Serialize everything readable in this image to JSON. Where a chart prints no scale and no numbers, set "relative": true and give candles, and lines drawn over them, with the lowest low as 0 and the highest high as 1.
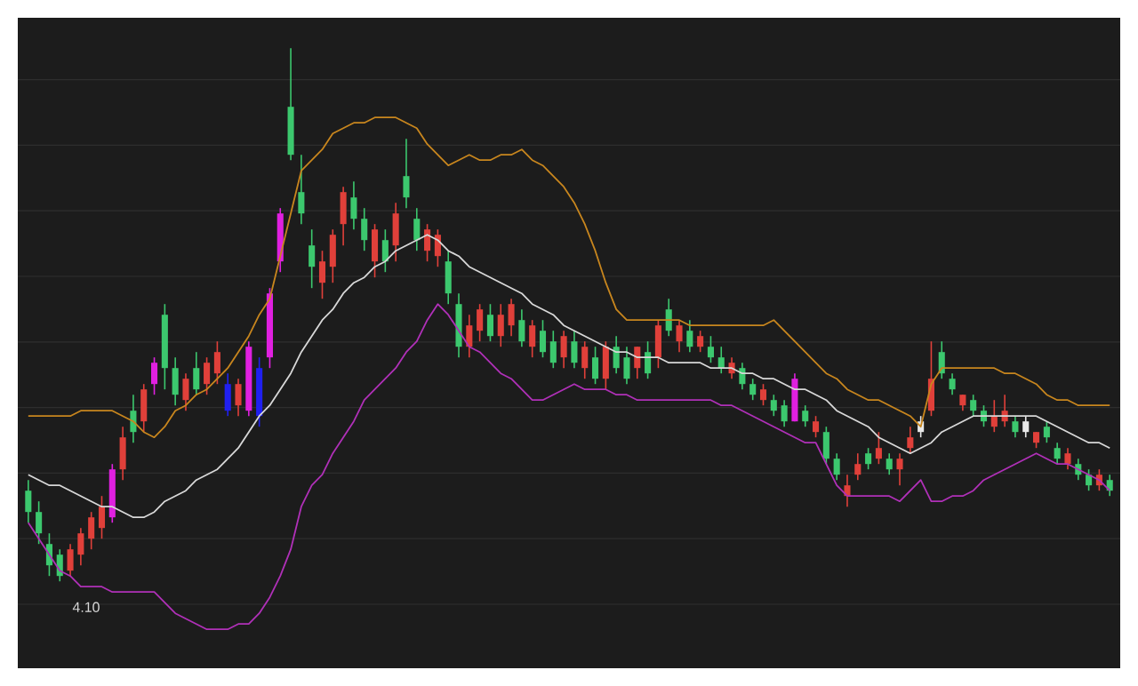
{
  "chart_data": {
    "type": "candlestick",
    "relative": true,
    "grid": "y",
    "tick_labels": false,
    "categories": [
      null,
      null,
      null,
      null,
      null,
      null,
      null,
      null,
      null,
      null,
      null,
      null,
      null,
      null,
      null,
      null,
      null,
      null,
      null,
      null,
      null,
      null,
      null,
      null,
      null,
      null,
      null,
      null,
      null,
      null,
      null,
      null,
      null,
      null,
      null,
      null,
      null,
      null,
      null,
      null,
      null,
      null,
      null,
      null,
      null,
      null,
      null,
      null,
      null,
      null,
      null,
      null,
      null,
      null,
      null,
      null,
      null,
      null,
      null,
      null,
      null,
      null,
      null,
      null,
      null,
      null,
      null,
      null,
      null,
      null,
      null,
      null,
      null,
      null,
      null,
      null,
      null,
      null,
      null,
      null,
      null,
      null,
      null,
      null,
      null,
      null,
      null,
      null,
      null,
      null,
      null,
      null,
      null,
      null,
      null,
      null,
      null,
      null,
      null,
      null,
      null,
      null,
      null,
      null
    ],
    "ohlc": [
      [
        0.17,
        0.19,
        0.11,
        0.13
      ],
      [
        0.13,
        0.15,
        0.07,
        0.09
      ],
      [
        0.07,
        0.09,
        0.01,
        0.03
      ],
      [
        0.05,
        0.06,
        0,
        0.01
      ],
      [
        0.02,
        0.07,
        0.01,
        0.06
      ],
      [
        0.05,
        0.1,
        0.03,
        0.09
      ],
      [
        0.08,
        0.13,
        0.06,
        0.12
      ],
      [
        0.1,
        0.16,
        0.08,
        0.14
      ],
      [
        0.12,
        0.22,
        0.11,
        0.21
      ],
      [
        0.21,
        0.29,
        0.19,
        0.27
      ],
      [
        0.32,
        0.35,
        0.26,
        0.28
      ],
      [
        0.3,
        0.37,
        0.28,
        0.36
      ],
      [
        0.37,
        0.42,
        0.35,
        0.41
      ],
      [
        0.5,
        0.52,
        0.36,
        0.4
      ],
      [
        0.4,
        0.42,
        0.33,
        0.35
      ],
      [
        0.34,
        0.39,
        0.32,
        0.38
      ],
      [
        0.4,
        0.43,
        0.35,
        0.36
      ],
      [
        0.37,
        0.42,
        0.35,
        0.41
      ],
      [
        0.39,
        0.45,
        0.37,
        0.43
      ],
      [
        0.37,
        0.39,
        0.31,
        0.32
      ],
      [
        0.33,
        0.38,
        0.31,
        0.37
      ],
      [
        0.32,
        0.45,
        0.31,
        0.44
      ],
      [
        0.4,
        0.42,
        0.29,
        0.31
      ],
      [
        0.42,
        0.55,
        0.4,
        0.54
      ],
      [
        0.6,
        0.7,
        0.58,
        0.69
      ],
      [
        0.89,
        1,
        0.79,
        0.8
      ],
      [
        0.73,
        0.8,
        0.67,
        0.69
      ],
      [
        0.63,
        0.66,
        0.55,
        0.59
      ],
      [
        0.56,
        0.62,
        0.53,
        0.6
      ],
      [
        0.59,
        0.66,
        0.56,
        0.65
      ],
      [
        0.67,
        0.74,
        0.63,
        0.73
      ],
      [
        0.72,
        0.75,
        0.66,
        0.68
      ],
      [
        0.68,
        0.7,
        0.62,
        0.64
      ],
      [
        0.6,
        0.67,
        0.57,
        0.66
      ],
      [
        0.64,
        0.66,
        0.58,
        0.6
      ],
      [
        0.63,
        0.71,
        0.6,
        0.69
      ],
      [
        0.76,
        0.83,
        0.7,
        0.72
      ],
      [
        0.68,
        0.7,
        0.62,
        0.64
      ],
      [
        0.62,
        0.67,
        0.6,
        0.66
      ],
      [
        0.61,
        0.66,
        0.59,
        0.65
      ],
      [
        0.6,
        0.62,
        0.52,
        0.54
      ],
      [
        0.52,
        0.54,
        0.42,
        0.44
      ],
      [
        0.44,
        0.5,
        0.42,
        0.48
      ],
      [
        0.47,
        0.52,
        0.45,
        0.51
      ],
      [
        0.5,
        0.52,
        0.45,
        0.46
      ],
      [
        0.46,
        0.52,
        0.44,
        0.5
      ],
      [
        0.48,
        0.53,
        0.46,
        0.52
      ],
      [
        0.49,
        0.51,
        0.44,
        0.45
      ],
      [
        0.44,
        0.49,
        0.42,
        0.48
      ],
      [
        0.47,
        0.49,
        0.42,
        0.43
      ],
      [
        0.45,
        0.47,
        0.4,
        0.41
      ],
      [
        0.42,
        0.47,
        0.4,
        0.46
      ],
      [
        0.45,
        0.47,
        0.4,
        0.41
      ],
      [
        0.4,
        0.45,
        0.38,
        0.44
      ],
      [
        0.42,
        0.44,
        0.37,
        0.38
      ],
      [
        0.38,
        0.45,
        0.36,
        0.44
      ],
      [
        0.44,
        0.46,
        0.39,
        0.4
      ],
      [
        0.42,
        0.44,
        0.37,
        0.38
      ],
      [
        0.4,
        0.44,
        0.38,
        0.44
      ],
      [
        0.43,
        0.45,
        0.38,
        0.39
      ],
      [
        0.42,
        0.49,
        0.4,
        0.48
      ],
      [
        0.51,
        0.53,
        0.46,
        0.47
      ],
      [
        0.45,
        0.49,
        0.43,
        0.48
      ],
      [
        0.47,
        0.49,
        0.43,
        0.44
      ],
      [
        0.44,
        0.47,
        0.43,
        0.46
      ],
      [
        0.44,
        0.46,
        0.41,
        0.42
      ],
      [
        0.42,
        0.44,
        0.39,
        0.4
      ],
      [
        0.39,
        0.42,
        0.38,
        0.41
      ],
      [
        0.4,
        0.41,
        0.36,
        0.37
      ],
      [
        0.37,
        0.38,
        0.34,
        0.35
      ],
      [
        0.34,
        0.37,
        0.33,
        0.36
      ],
      [
        0.34,
        0.35,
        0.31,
        0.32
      ],
      [
        0.33,
        0.34,
        0.29,
        0.3
      ],
      [
        0.3,
        0.39,
        0.3,
        0.38
      ],
      [
        0.32,
        0.33,
        0.29,
        0.3
      ],
      [
        0.28,
        0.31,
        0.27,
        0.3
      ],
      [
        0.28,
        0.29,
        0.22,
        0.23
      ],
      [
        0.23,
        0.24,
        0.19,
        0.2
      ],
      [
        0.16,
        0.2,
        0.14,
        0.18
      ],
      [
        0.2,
        0.24,
        0.19,
        0.22
      ],
      [
        0.24,
        0.25,
        0.21,
        0.22
      ],
      [
        0.23,
        0.28,
        0.22,
        0.25
      ],
      [
        0.23,
        0.24,
        0.2,
        0.21
      ],
      [
        0.21,
        0.24,
        0.18,
        0.23
      ],
      [
        0.25,
        0.29,
        0.24,
        0.27
      ],
      [
        0.28,
        0.31,
        0.27,
        0.3
      ],
      [
        0.32,
        0.45,
        0.31,
        0.38
      ],
      [
        0.43,
        0.45,
        0.38,
        0.39
      ],
      [
        0.38,
        0.39,
        0.35,
        0.36
      ],
      [
        0.33,
        0.35,
        0.32,
        0.35
      ],
      [
        0.34,
        0.35,
        0.31,
        0.32
      ],
      [
        0.32,
        0.33,
        0.29,
        0.3
      ],
      [
        0.29,
        0.34,
        0.28,
        0.31
      ],
      [
        0.3,
        0.35,
        0.29,
        0.32
      ],
      [
        0.3,
        0.31,
        0.27,
        0.28
      ],
      [
        0.28,
        0.31,
        0.27,
        0.3
      ],
      [
        0.26,
        0.28,
        0.25,
        0.28
      ],
      [
        0.29,
        0.3,
        0.26,
        0.27
      ],
      [
        0.25,
        0.26,
        0.22,
        0.23
      ],
      [
        0.22,
        0.25,
        0.21,
        0.24
      ],
      [
        0.22,
        0.23,
        0.19,
        0.2
      ],
      [
        0.2,
        0.21,
        0.17,
        0.18
      ],
      [
        0.18,
        0.21,
        0.17,
        0.2
      ],
      [
        0.19,
        0.2,
        0.16,
        0.17
      ]
    ],
    "colors": [
      "#3cc86e",
      "#3cc86e",
      "#3cc86e",
      "#3cc86e",
      "#e0403a",
      "#e0403a",
      "#e0403a",
      "#e0403a",
      "#e020e0",
      "#e0403a",
      "#3cc86e",
      "#e0403a",
      "#e020e0",
      "#3cc86e",
      "#3cc86e",
      "#e0403a",
      "#3cc86e",
      "#e0403a",
      "#e0403a",
      "#2020f0",
      "#e0403a",
      "#e020e0",
      "#2020f0",
      "#e020e0",
      "#e020e0",
      "#3cc86e",
      "#3cc86e",
      "#3cc86e",
      "#e0403a",
      "#e0403a",
      "#e0403a",
      "#3cc86e",
      "#3cc86e",
      "#e0403a",
      "#3cc86e",
      "#e0403a",
      "#3cc86e",
      "#3cc86e",
      "#e0403a",
      "#e0403a",
      "#3cc86e",
      "#3cc86e",
      "#e0403a",
      "#e0403a",
      "#3cc86e",
      "#e0403a",
      "#e0403a",
      "#3cc86e",
      "#e0403a",
      "#3cc86e",
      "#3cc86e",
      "#e0403a",
      "#3cc86e",
      "#e0403a",
      "#3cc86e",
      "#e0403a",
      "#3cc86e",
      "#3cc86e",
      "#e0403a",
      "#3cc86e",
      "#e0403a",
      "#3cc86e",
      "#e0403a",
      "#3cc86e",
      "#e0403a",
      "#3cc86e",
      "#3cc86e",
      "#e0403a",
      "#3cc86e",
      "#3cc86e",
      "#e0403a",
      "#3cc86e",
      "#3cc86e",
      "#e020e0",
      "#3cc86e",
      "#e0403a",
      "#3cc86e",
      "#3cc86e",
      "#e0403a",
      "#e0403a",
      "#3cc86e",
      "#e0403a",
      "#3cc86e",
      "#e0403a",
      "#e0403a",
      "#e8e8e8",
      "#e0403a",
      "#3cc86e",
      "#3cc86e",
      "#e0403a",
      "#3cc86e",
      "#3cc86e",
      "#e0403a",
      "#e0403a",
      "#3cc86e",
      "#e8e8e8",
      "#e0403a",
      "#3cc86e",
      "#3cc86e",
      "#e0403a",
      "#3cc86e",
      "#3cc86e",
      "#e0403a",
      "#3cc86e"
    ],
    "series": [
      {
        "type": "line",
        "color": "#c8861e",
        "values": [
          0.31,
          0.31,
          0.31,
          0.31,
          0.31,
          0.32,
          0.32,
          0.32,
          0.32,
          0.31,
          0.3,
          0.28,
          0.27,
          0.29,
          0.32,
          0.33,
          0.35,
          0.36,
          0.38,
          0.4,
          0.43,
          0.46,
          0.5,
          0.53,
          0.61,
          0.69,
          0.77,
          0.79,
          0.81,
          0.84,
          0.85,
          0.86,
          0.86,
          0.87,
          0.87,
          0.87,
          0.86,
          0.85,
          0.82,
          0.8,
          0.78,
          0.79,
          0.8,
          0.79,
          0.79,
          0.8,
          0.8,
          0.81,
          0.79,
          0.78,
          0.76,
          0.74,
          0.71,
          0.67,
          0.62,
          0.56,
          0.51,
          0.49,
          0.49,
          0.49,
          0.49,
          0.49,
          0.49,
          0.48,
          0.48,
          0.48,
          0.48,
          0.48,
          0.48,
          0.48,
          0.48,
          0.49,
          0.47,
          0.45,
          0.43,
          0.41,
          0.39,
          0.38,
          0.36,
          0.35,
          0.34,
          0.34,
          0.33,
          0.32,
          0.31,
          0.29,
          0.37,
          0.4,
          0.4,
          0.4,
          0.4,
          0.4,
          0.4,
          0.39,
          0.39,
          0.38,
          0.37,
          0.35,
          0.34,
          0.34,
          0.33,
          0.33,
          0.33,
          0.33
        ]
      },
      {
        "type": "line",
        "color": "#d8d8d8",
        "values": [
          0.2,
          0.19,
          0.18,
          0.18,
          0.17,
          0.16,
          0.15,
          0.14,
          0.14,
          0.13,
          0.12,
          0.12,
          0.13,
          0.15,
          0.16,
          0.17,
          0.19,
          0.2,
          0.21,
          0.23,
          0.25,
          0.28,
          0.31,
          0.33,
          0.36,
          0.39,
          0.43,
          0.46,
          0.49,
          0.51,
          0.54,
          0.56,
          0.57,
          0.59,
          0.6,
          0.62,
          0.63,
          0.64,
          0.65,
          0.64,
          0.62,
          0.61,
          0.59,
          0.58,
          0.57,
          0.56,
          0.55,
          0.54,
          0.52,
          0.51,
          0.5,
          0.48,
          0.47,
          0.46,
          0.45,
          0.44,
          0.43,
          0.43,
          0.42,
          0.42,
          0.42,
          0.41,
          0.41,
          0.41,
          0.41,
          0.4,
          0.4,
          0.4,
          0.39,
          0.39,
          0.38,
          0.38,
          0.37,
          0.36,
          0.36,
          0.35,
          0.34,
          0.32,
          0.31,
          0.3,
          0.29,
          0.27,
          0.26,
          0.25,
          0.24,
          0.25,
          0.26,
          0.28,
          0.29,
          0.3,
          0.31,
          0.31,
          0.31,
          0.31,
          0.31,
          0.31,
          0.31,
          0.3,
          0.29,
          0.28,
          0.27,
          0.26,
          0.26,
          0.25
        ]
      },
      {
        "type": "line",
        "color": "#b030b8",
        "values": [
          0.11,
          0.08,
          0.05,
          0.02,
          0.01,
          -0.01,
          -0.01,
          -0.01,
          -0.02,
          -0.02,
          -0.02,
          -0.02,
          -0.02,
          -0.04,
          -0.06,
          -0.07,
          -0.08,
          -0.09,
          -0.09,
          -0.09,
          -0.08,
          -0.08,
          -0.06,
          -0.03,
          0.01,
          0.06,
          0.14,
          0.18,
          0.2,
          0.24,
          0.27,
          0.3,
          0.34,
          0.36,
          0.38,
          0.4,
          0.43,
          0.45,
          0.49,
          0.52,
          0.5,
          0.47,
          0.44,
          0.43,
          0.41,
          0.39,
          0.38,
          0.36,
          0.34,
          0.34,
          0.35,
          0.36,
          0.37,
          0.36,
          0.36,
          0.36,
          0.35,
          0.35,
          0.34,
          0.34,
          0.34,
          0.34,
          0.34,
          0.34,
          0.34,
          0.34,
          0.33,
          0.33,
          0.32,
          0.31,
          0.3,
          0.29,
          0.28,
          0.27,
          0.26,
          0.26,
          0.22,
          0.18,
          0.16,
          0.16,
          0.16,
          0.16,
          0.16,
          0.15,
          0.17,
          0.19,
          0.15,
          0.15,
          0.16,
          0.16,
          0.17,
          0.19,
          0.2,
          0.21,
          0.22,
          0.23,
          0.24,
          0.23,
          0.22,
          0.22,
          0.21,
          0.2,
          0.19,
          0.17
        ]
      }
    ],
    "annotations": [
      {
        "text": "4.10",
        "y": 0
      }
    ]
  }
}
